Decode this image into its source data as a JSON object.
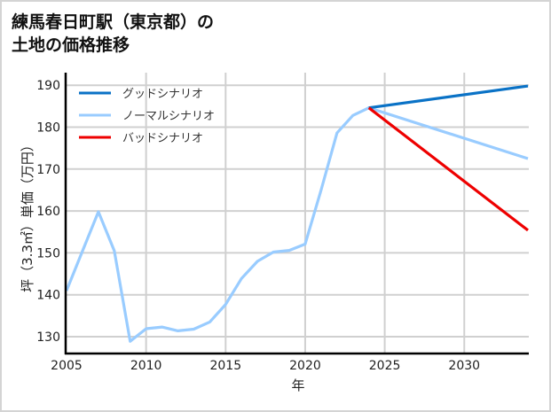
{
  "title": {
    "line1": "練馬春日町駅（東京都）の",
    "line2": "土地の価格推移"
  },
  "chart_data": {
    "type": "line",
    "title": "練馬春日町駅（東京都）の土地の価格推移",
    "xlabel": "年",
    "ylabel": "坪（3.3㎡）単価（万円）",
    "xlim": [
      2005,
      2034
    ],
    "ylim": [
      126,
      193
    ],
    "xticks": [
      2005,
      2010,
      2015,
      2020,
      2025,
      2030
    ],
    "yticks": [
      130,
      140,
      150,
      160,
      170,
      180,
      190
    ],
    "grid": true,
    "legend_position": "upper left",
    "series": [
      {
        "name": "グッドシナリオ",
        "color": "#0a72c6",
        "x": [
          2024,
          2034
        ],
        "values": [
          184.6,
          189.8
        ]
      },
      {
        "name": "ノーマルシナリオ",
        "color": "#99ccff",
        "x": [
          2005,
          2006,
          2007,
          2008,
          2009,
          2010,
          2011,
          2012,
          2013,
          2014,
          2015,
          2016,
          2017,
          2018,
          2019,
          2020,
          2021,
          2022,
          2023,
          2024,
          2034
        ],
        "values": [
          141.0,
          150.4,
          159.8,
          150.5,
          128.9,
          131.9,
          132.3,
          131.4,
          131.8,
          133.5,
          137.7,
          143.9,
          148.0,
          150.2,
          150.6,
          152.1,
          165.0,
          178.6,
          182.8,
          184.6,
          172.5
        ]
      },
      {
        "name": "バッドシナリオ",
        "color": "#ee0000",
        "x": [
          2024,
          2034
        ],
        "values": [
          184.6,
          155.4
        ]
      }
    ]
  }
}
